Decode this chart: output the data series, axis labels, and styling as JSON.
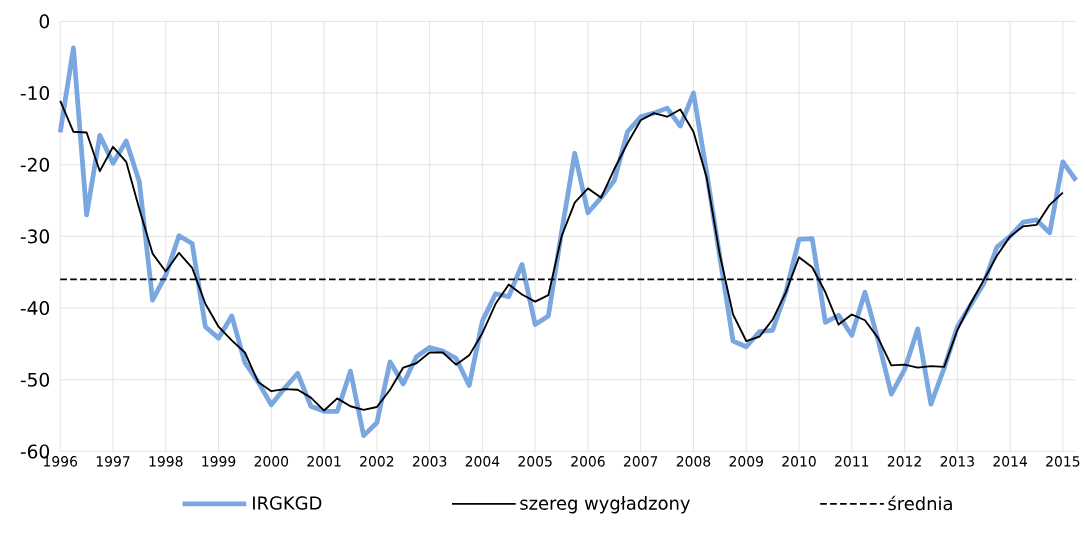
{
  "chart_data": {
    "type": "line",
    "x": [
      1996,
      1996.25,
      1996.5,
      1996.75,
      1997,
      1997.25,
      1997.5,
      1997.75,
      1998,
      1998.25,
      1998.5,
      1998.75,
      1999,
      1999.25,
      1999.5,
      1999.75,
      2000,
      2000.25,
      2000.5,
      2000.75,
      2001,
      2001.25,
      2001.5,
      2001.75,
      2002,
      2002.25,
      2002.5,
      2002.75,
      2003,
      2003.25,
      2003.5,
      2003.75,
      2004,
      2004.25,
      2004.5,
      2004.75,
      2005,
      2005.25,
      2005.5,
      2005.75,
      2006,
      2006.25,
      2006.5,
      2006.75,
      2007,
      2007.25,
      2007.5,
      2007.75,
      2008,
      2008.25,
      2008.5,
      2008.75,
      2009,
      2009.25,
      2009.5,
      2009.75,
      2010,
      2010.25,
      2010.5,
      2010.75,
      2011,
      2011.25,
      2011.5,
      2011.75,
      2012,
      2012.25,
      2012.5,
      2012.75,
      2013,
      2013.25,
      2013.5,
      2013.75,
      2014,
      2014.25,
      2014.5,
      2014.75,
      2015,
      2015.25
    ],
    "series": [
      {
        "name": "IRGKGD",
        "color": "#7ba7e0",
        "values": [
          -15.5,
          -3.7,
          -27.0,
          -15.9,
          -19.8,
          -16.7,
          -22.4,
          -38.9,
          -35.4,
          -29.9,
          -31.0,
          -42.6,
          -44.2,
          -41.1,
          -47.6,
          -50.3,
          -53.5,
          -51.2,
          -49.1,
          -53.7,
          -54.4,
          -54.4,
          -48.8,
          -57.8,
          -56.0,
          -47.5,
          -50.6,
          -46.8,
          -45.5,
          -46.0,
          -47.0,
          -50.8,
          -41.8,
          -38.0,
          -38.4,
          -33.9,
          -42.3,
          -41.1,
          -29.4,
          -18.4,
          -26.7,
          -24.6,
          -22.2,
          -15.4,
          -13.3,
          -12.8,
          -12.1,
          -14.6,
          -10.0,
          -21.1,
          -32.9,
          -44.6,
          -45.4,
          -43.3,
          -43.1,
          -37.8,
          -30.4,
          -30.3,
          -42.0,
          -41.0,
          -43.8,
          -37.8,
          -44.5,
          -52.0,
          -48.6,
          -42.9,
          -53.4,
          -48.4,
          -42.6,
          -39.6,
          -36.6,
          -31.5,
          -30.0,
          -28.0,
          -27.7,
          -29.5,
          -19.6,
          -22.2
        ]
      },
      {
        "name": "szereg wygładzony",
        "color": "#000000",
        "values": [
          -11.1,
          -15.4,
          -15.5,
          -20.9,
          -17.5,
          -19.6,
          -26.2,
          -32.4,
          -34.9,
          -32.3,
          -34.4,
          -39.4,
          -42.6,
          -44.5,
          -46.2,
          -50.3,
          -51.6,
          -51.3,
          -51.4,
          -52.5,
          -54.3,
          -52.6,
          -53.7,
          -54.2,
          -53.8,
          -51.4,
          -48.3,
          -47.7,
          -46.2,
          -46.2,
          -47.9,
          -46.6,
          -43.5,
          -39.4,
          -36.7,
          -38.1,
          -39.1,
          -38.2,
          -30.0,
          -25.3,
          -23.3,
          -24.6,
          -20.6,
          -17.0,
          -13.8,
          -12.8,
          -13.3,
          -12.3,
          -15.4,
          -21.8,
          -32.6,
          -40.9,
          -44.6,
          -44.0,
          -41.6,
          -37.8,
          -32.9,
          -34.3,
          -37.8,
          -42.3,
          -40.9,
          -41.7,
          -44.2,
          -48.0,
          -47.9,
          -48.3,
          -48.1,
          -48.2,
          -43.1,
          -39.4,
          -36.1,
          -32.7,
          -30.0,
          -28.6,
          -28.4,
          -25.6,
          -23.9,
          null
        ]
      }
    ],
    "ref_lines": [
      {
        "axis": "y",
        "value": -36,
        "label": "średnia",
        "color": "#000000",
        "line_style": "dashed"
      }
    ],
    "xlim": [
      1996,
      2015.25
    ],
    "ylim": [
      -60,
      0
    ],
    "xticks": [
      1996,
      1997,
      1998,
      1999,
      2000,
      2001,
      2002,
      2003,
      2004,
      2005,
      2006,
      2007,
      2008,
      2009,
      2010,
      2011,
      2012,
      2013,
      2014,
      2015
    ],
    "yticks": [
      -60,
      -50,
      -40,
      -30,
      -20,
      -10,
      0
    ],
    "grid": true,
    "legend": "bottom",
    "marker": "none",
    "line_style": "solid"
  }
}
